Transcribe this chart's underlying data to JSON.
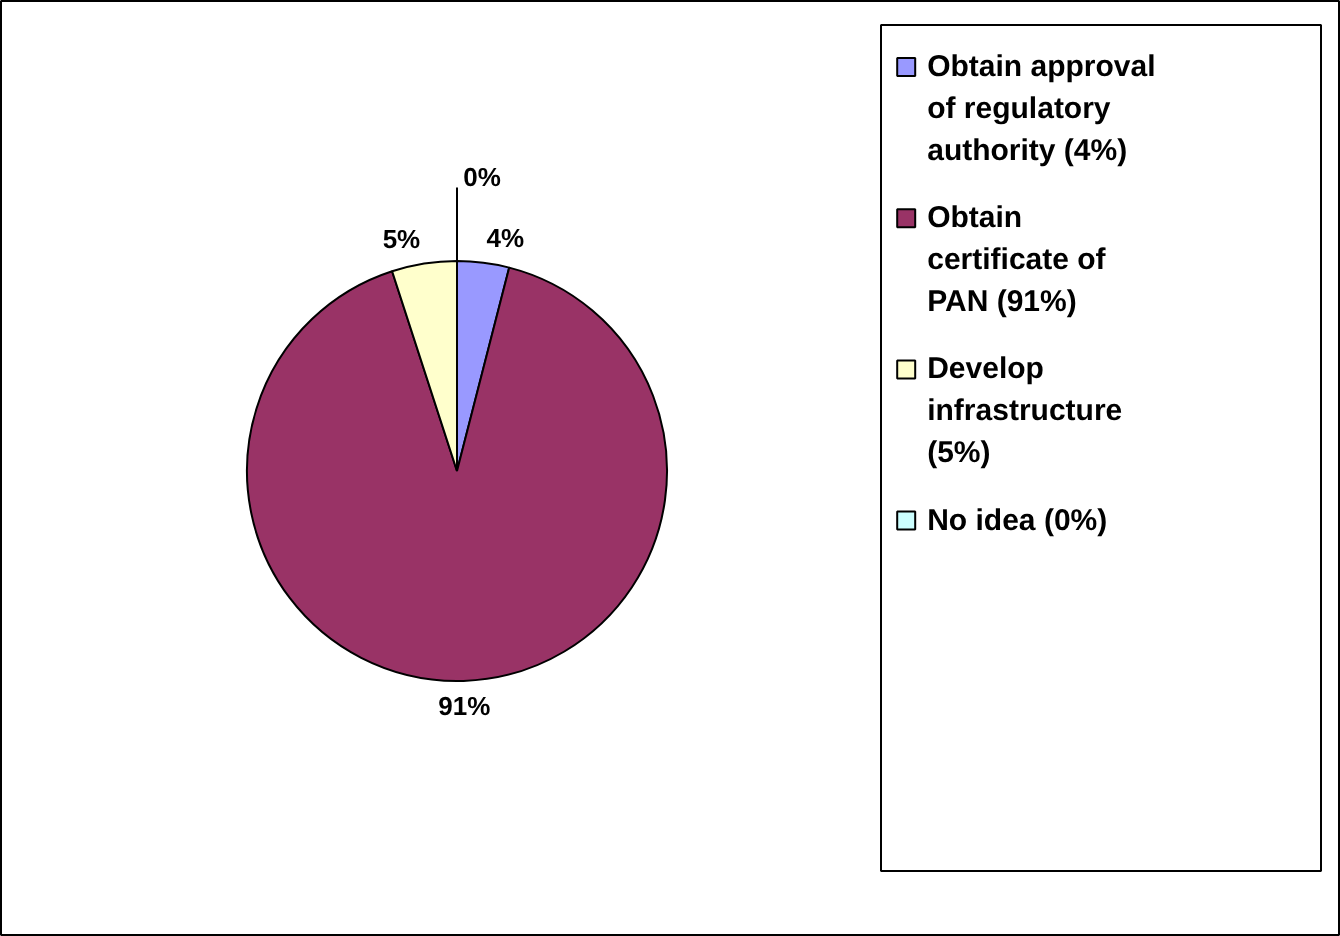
{
  "chart_data": {
    "type": "pie",
    "categories": [
      "Obtain approval of regulatory authority (4%)",
      "Obtain certificate of PAN (91%)",
      "Develop infrastructure (5%)",
      "No idea (0%)"
    ],
    "values": [
      4,
      91,
      5,
      0
    ],
    "colors": [
      "#9999ff",
      "#993366",
      "#ffffcc",
      "#ccffff"
    ],
    "value_labels": [
      "4%",
      "91%",
      "5%",
      "0%"
    ],
    "legend": "right"
  }
}
